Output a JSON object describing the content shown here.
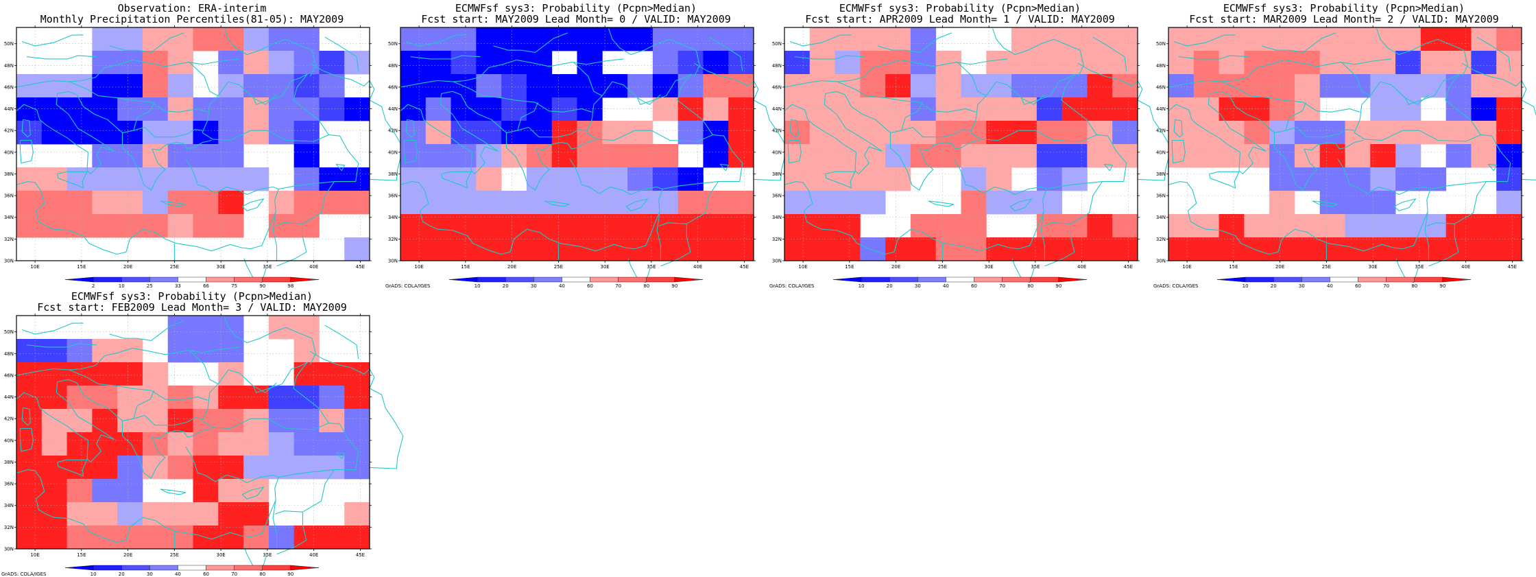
{
  "page": {
    "colors": {
      "coast": "#20c8c8",
      "grid": "#b0b0b0",
      "blue_dark": "#0000ff",
      "red_dark": "#ff0000"
    }
  },
  "panels": [
    {
      "title_line1": "Observation: ERA-interim",
      "title_line2": "Monthly Precipitation Percentiles(81-05): MAY2009",
      "colorbar_labels": [
        "2",
        "10",
        "25",
        "33",
        "66",
        "75",
        "90",
        "98"
      ],
      "credit": "",
      "grid_levels": [
        "00044556643300",
        "00033650354324",
        "44411640433230",
        "11113353353321",
        "21111441353200",
        "00033533300100",
        "55444444440311",
        "66655466705666",
        "66666656606600",
        "00000000000004"
      ]
    },
    {
      "title_line1": "ECMWFsf sys3: Probability (Pcpn>Median)",
      "title_line2": "Fcst start: MAY2009  Lead Month= 0 / VALID: MAY2009",
      "colorbar_labels": [
        "10",
        "20",
        "30",
        "40",
        "60",
        "70",
        "80",
        "90"
      ],
      "credit": "GrADS: COLA/IGES",
      "grid_levels": [
        "33311111113333",
        "11211101003212",
        "11132111131366",
        "13112121005757",
        "35221176550317",
        "33345676666017",
        "44450444432100",
        "44444444444666",
        "77777777777777",
        "77777777777777"
      ]
    },
    {
      "title_line1": "ECMWFsf sys3: Probability (Pcpn>Median)",
      "title_line2": "Fcst start: APR2009  Lead Month= 1 / VALID: MAY2009",
      "colorbar_labels": [
        "10",
        "20",
        "30",
        "40",
        "60",
        "70",
        "80",
        "90"
      ],
      "credit": "GrADS: COLA/IGES",
      "grid_levels": [
        "05555300055555",
        "25466350555555",
        "55567454433376",
        "55555355552777",
        "65555566776653",
        "55554665552255",
        "55555004503400",
        "44440006444000",
        "77700666006676",
        "77737766777777"
      ]
    },
    {
      "title_line1": "ECMWFsf sys3: Probability (Pcpn>Median)",
      "title_line2": "Fcst start: MAR2009  Lead Month= 2 / VALID: MAY2009",
      "colorbar_labels": [
        "10",
        "20",
        "30",
        "40",
        "60",
        "70",
        "80",
        "90"
      ],
      "credit": "GrADS: COLA/IGES",
      "grid_levels": [
        "55555555557756",
        "56566655525525",
        "36666533444355",
        "55776500440317",
        "55564335555557",
        "55553575740351",
        "00003333433002",
        "00005033300004",
        "55755554444777",
        "77777777777777"
      ]
    },
    {
      "title_line1": "ECMWFsf sys3: Probability (Pcpn>Median)",
      "title_line2": "Fcst start: FEB2009  Lead Month= 3 / VALID: MAY2009",
      "colorbar_labels": [
        "10",
        "20",
        "30",
        "40",
        "60",
        "70",
        "80",
        "90"
      ],
      "credit": "GrADS: COLA/IGES",
      "grid_levels": [
        "00000033305500",
        "22355033300500",
        "77777500500777",
        "77665565772237",
        "75575576653353",
        "75777656554333",
        "77773567744443",
        "77633007550000",
        "77554555770005",
        "77666667763777"
      ]
    }
  ]
}
